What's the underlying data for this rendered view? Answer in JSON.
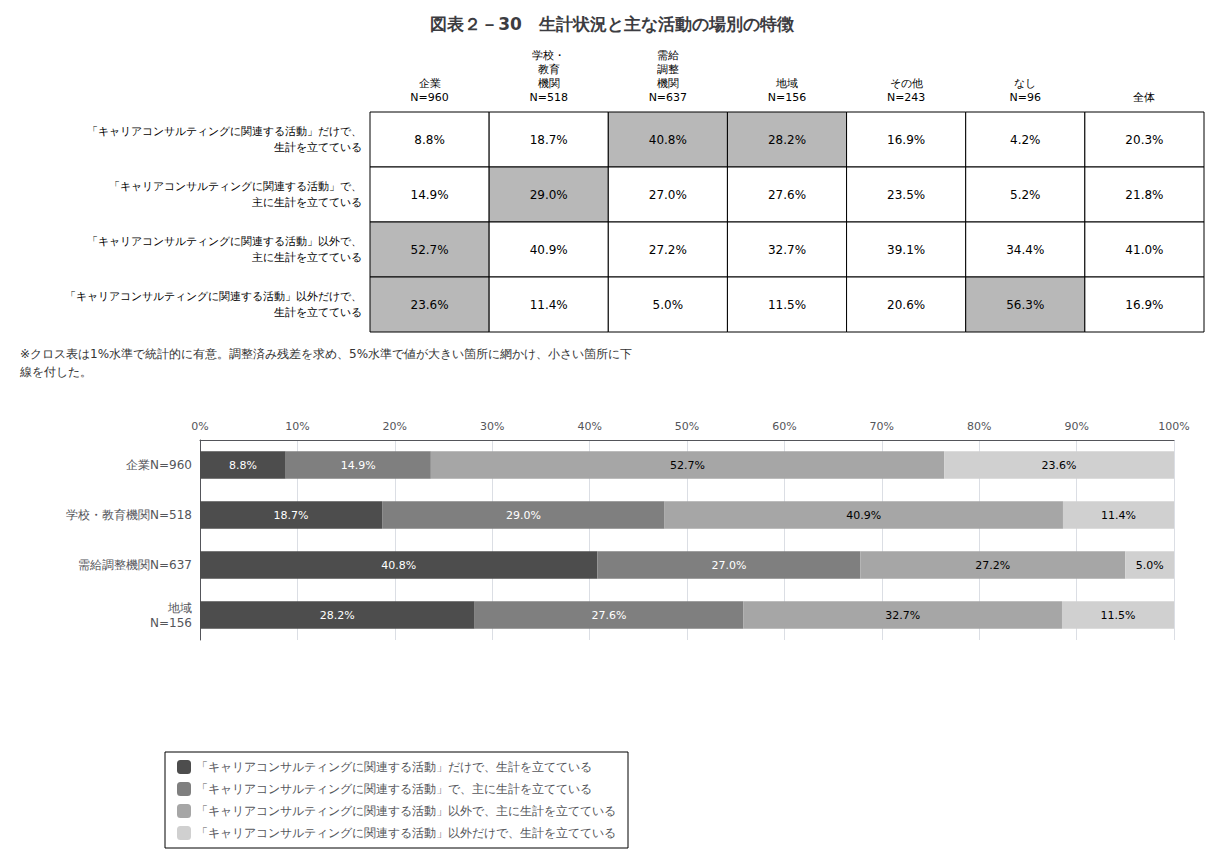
{
  "chart_data": [
    {
      "type": "table",
      "title": "図表２－30　生計状況と主な活動の場別の特徴",
      "annotations": [
        "※クロス表は1%水準で統計的に有意。調整済み残差を求め、5%水準で値が大きい箇所に網かけ、小さい箇所に下\n線を付した。"
      ],
      "categories": [
        "企業\nN=960",
        "学校・\n教育\n機関\nN=518",
        "需給\n調整\n機関\nN=637",
        "地域\nN=156",
        "その他\nN=243",
        "なし\nN=96",
        "全体"
      ],
      "series": [
        {
          "name": "「キャリアコンサルティングに関連する活動」だけで、\n生計を立てている",
          "values": [
            8.8,
            18.7,
            40.8,
            28.2,
            16.9,
            4.2,
            20.3
          ],
          "value_labels": [
            "8.8%",
            "18.7%",
            "40.8%",
            "28.2%",
            "16.9%",
            "4.2%",
            "20.3%"
          ],
          "colors": [
            "#ffffff",
            "#ffffff",
            "#b8b8b8",
            "#b8b8b8",
            "#ffffff",
            "#ffffff",
            "#ffffff"
          ]
        },
        {
          "name": "「キャリアコンサルティングに関連する活動」で、\n主に生計を立てている",
          "values": [
            14.9,
            29.0,
            27.0,
            27.6,
            23.5,
            5.2,
            21.8
          ],
          "value_labels": [
            "14.9%",
            "29.0%",
            "27.0%",
            "27.6%",
            "23.5%",
            "5.2%",
            "21.8%"
          ],
          "colors": [
            "#ffffff",
            "#b8b8b8",
            "#ffffff",
            "#ffffff",
            "#ffffff",
            "#ffffff",
            "#ffffff"
          ]
        },
        {
          "name": "「キャリアコンサルティングに関連する活動」以外で、\n主に生計を立てている",
          "values": [
            52.7,
            40.9,
            27.2,
            32.7,
            39.1,
            34.4,
            41.0
          ],
          "value_labels": [
            "52.7%",
            "40.9%",
            "27.2%",
            "32.7%",
            "39.1%",
            "34.4%",
            "41.0%"
          ],
          "colors": [
            "#b8b8b8",
            "#ffffff",
            "#ffffff",
            "#ffffff",
            "#ffffff",
            "#ffffff",
            "#ffffff"
          ]
        },
        {
          "name": "「キャリアコンサルティングに関連する活動」以外だけで、\n生計を立てている",
          "values": [
            23.6,
            11.4,
            5.0,
            11.5,
            20.6,
            56.3,
            16.9
          ],
          "value_labels": [
            "23.6%",
            "11.4%",
            "5.0%",
            "11.5%",
            "20.6%",
            "56.3%",
            "16.9%"
          ],
          "colors": [
            "#b8b8b8",
            "#ffffff",
            "#ffffff",
            "#ffffff",
            "#ffffff",
            "#b8b8b8",
            "#ffffff"
          ]
        }
      ]
    },
    {
      "type": "bar",
      "orientation": "horizontal",
      "stacked": true,
      "data_labels": true,
      "grid": true,
      "legend": "bottom",
      "categories": [
        "企業N=960",
        "学校・教育機関N=518",
        "需給調整機関N=637",
        "地域\nN=156"
      ],
      "series": [
        {
          "name": "「キャリアコンサルティングに関連する活動」だけで、生計を立てている",
          "color": "#4d4d4d",
          "values": [
            8.8,
            18.7,
            40.8,
            28.2
          ],
          "value_labels": [
            "8.8%",
            "18.7%",
            "40.8%",
            "28.2%"
          ]
        },
        {
          "name": "「キャリアコンサルティングに関連する活動」で、主に生計を立てている",
          "color": "#7f7f7f",
          "values": [
            14.9,
            29.0,
            27.0,
            27.6
          ],
          "value_labels": [
            "14.9%",
            "29.0%",
            "27.0%",
            "27.6%"
          ]
        },
        {
          "name": "「キャリアコンサルティングに関連する活動」以外で、主に生計を立てている",
          "color": "#a6a6a6",
          "values": [
            52.7,
            40.9,
            27.2,
            32.7
          ],
          "value_labels": [
            "52.7%",
            "40.9%",
            "27.2%",
            "32.7%"
          ]
        },
        {
          "name": "「キャリアコンサルティングに関連する活動」以外だけで、生計を立てている",
          "color": "#d0d0d0",
          "values": [
            23.6,
            11.4,
            5.0,
            11.5
          ],
          "value_labels": [
            "23.6%",
            "11.4%",
            "5.0%",
            "11.5%"
          ]
        }
      ],
      "xlim": [
        0,
        100
      ],
      "xticks": [
        {
          "value": 0,
          "label": "0%"
        },
        {
          "value": 10,
          "label": "10%"
        },
        {
          "value": 20,
          "label": "20%"
        },
        {
          "value": 30,
          "label": "30%"
        },
        {
          "value": 40,
          "label": "40%"
        },
        {
          "value": 50,
          "label": "50%"
        },
        {
          "value": 60,
          "label": "60%"
        },
        {
          "value": 70,
          "label": "70%"
        },
        {
          "value": 80,
          "label": "80%"
        },
        {
          "value": 90,
          "label": "90%"
        },
        {
          "value": 100,
          "label": "100%"
        }
      ]
    }
  ]
}
